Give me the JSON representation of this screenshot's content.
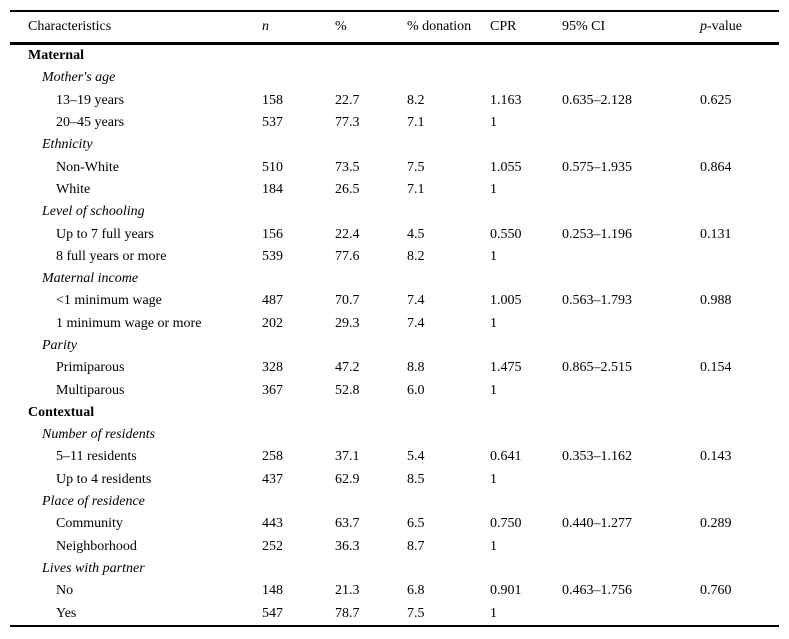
{
  "table": {
    "columns": [
      {
        "id": "label",
        "label": "Characteristics",
        "italic": false
      },
      {
        "id": "n",
        "label": "n",
        "italic": true
      },
      {
        "id": "pct",
        "label": "%",
        "italic": false
      },
      {
        "id": "donation",
        "label": "% donation",
        "italic": false
      },
      {
        "id": "cpr",
        "label": "CPR",
        "italic": false
      },
      {
        "id": "ci",
        "label": "95% CI",
        "italic": false
      },
      {
        "id": "p",
        "label": "p-value",
        "italic": false,
        "italic_prefix": "p",
        "suffix": "-value"
      }
    ],
    "rows": [
      {
        "type": "section",
        "label": "Maternal",
        "n": "",
        "pct": "",
        "donation": "",
        "cpr": "",
        "ci": "",
        "p": ""
      },
      {
        "type": "subsection",
        "label": "Mother's age",
        "n": "",
        "pct": "",
        "donation": "",
        "cpr": "",
        "ci": "",
        "p": ""
      },
      {
        "type": "data",
        "label": "13–19 years",
        "n": "158",
        "pct": "22.7",
        "donation": "8.2",
        "cpr": "1.163",
        "ci": "0.635–2.128",
        "p": "0.625"
      },
      {
        "type": "data",
        "label": "20–45 years",
        "n": "537",
        "pct": "77.3",
        "donation": "7.1",
        "cpr": "1",
        "ci": "",
        "p": ""
      },
      {
        "type": "subsection",
        "label": "Ethnicity",
        "n": "",
        "pct": "",
        "donation": "",
        "cpr": "",
        "ci": "",
        "p": ""
      },
      {
        "type": "data",
        "label": "Non-White",
        "n": "510",
        "pct": "73.5",
        "donation": "7.5",
        "cpr": "1.055",
        "ci": "0.575–1.935",
        "p": "0.864"
      },
      {
        "type": "data",
        "label": "White",
        "n": "184",
        "pct": "26.5",
        "donation": "7.1",
        "cpr": "1",
        "ci": "",
        "p": ""
      },
      {
        "type": "subsection",
        "label": "Level of schooling",
        "n": "",
        "pct": "",
        "donation": "",
        "cpr": "",
        "ci": "",
        "p": ""
      },
      {
        "type": "data",
        "label": "Up to 7 full years",
        "n": "156",
        "pct": "22.4",
        "donation": "4.5",
        "cpr": "0.550",
        "ci": "0.253–1.196",
        "p": "0.131"
      },
      {
        "type": "data",
        "label": "8 full years or more",
        "n": "539",
        "pct": "77.6",
        "donation": "8.2",
        "cpr": "1",
        "ci": "",
        "p": ""
      },
      {
        "type": "subsection",
        "label": "Maternal income",
        "n": "",
        "pct": "",
        "donation": "",
        "cpr": "",
        "ci": "",
        "p": ""
      },
      {
        "type": "data",
        "label": "<1 minimum wage",
        "n": "487",
        "pct": "70.7",
        "donation": "7.4",
        "cpr": "1.005",
        "ci": "0.563–1.793",
        "p": "0.988"
      },
      {
        "type": "data",
        "label": "1 minimum wage or more",
        "n": "202",
        "pct": "29.3",
        "donation": "7.4",
        "cpr": "1",
        "ci": "",
        "p": ""
      },
      {
        "type": "subsection",
        "label": "Parity",
        "n": "",
        "pct": "",
        "donation": "",
        "cpr": "",
        "ci": "",
        "p": ""
      },
      {
        "type": "data",
        "label": "Primiparous",
        "n": "328",
        "pct": "47.2",
        "donation": "8.8",
        "cpr": "1.475",
        "ci": "0.865–2.515",
        "p": "0.154"
      },
      {
        "type": "data",
        "label": "Multiparous",
        "n": "367",
        "pct": "52.8",
        "donation": "6.0",
        "cpr": "1",
        "ci": "",
        "p": ""
      },
      {
        "type": "section",
        "label": "Contextual",
        "n": "",
        "pct": "",
        "donation": "",
        "cpr": "",
        "ci": "",
        "p": ""
      },
      {
        "type": "subsection",
        "label": "Number of residents",
        "n": "",
        "pct": "",
        "donation": "",
        "cpr": "",
        "ci": "",
        "p": ""
      },
      {
        "type": "data",
        "label": "5–11 residents",
        "n": "258",
        "pct": "37.1",
        "donation": "5.4",
        "cpr": "0.641",
        "ci": "0.353–1.162",
        "p": "0.143"
      },
      {
        "type": "data",
        "label": "Up to 4 residents",
        "n": "437",
        "pct": "62.9",
        "donation": "8.5",
        "cpr": "1",
        "ci": "",
        "p": ""
      },
      {
        "type": "subsection",
        "label": "Place of residence",
        "n": "",
        "pct": "",
        "donation": "",
        "cpr": "",
        "ci": "",
        "p": ""
      },
      {
        "type": "data",
        "label": "Community",
        "n": "443",
        "pct": "63.7",
        "donation": "6.5",
        "cpr": "0.750",
        "ci": "0.440–1.277",
        "p": "0.289"
      },
      {
        "type": "data",
        "label": "Neighborhood",
        "n": "252",
        "pct": "36.3",
        "donation": "8.7",
        "cpr": "1",
        "ci": "",
        "p": ""
      },
      {
        "type": "subsection",
        "label": "Lives with partner",
        "n": "",
        "pct": "",
        "donation": "",
        "cpr": "",
        "ci": "",
        "p": ""
      },
      {
        "type": "data",
        "label": "No",
        "n": "148",
        "pct": "21.3",
        "donation": "6.8",
        "cpr": "0.901",
        "ci": "0.463–1.756",
        "p": "0.760"
      },
      {
        "type": "data",
        "label": "Yes",
        "n": "547",
        "pct": "78.7",
        "donation": "7.5",
        "cpr": "1",
        "ci": "",
        "p": ""
      }
    ]
  }
}
